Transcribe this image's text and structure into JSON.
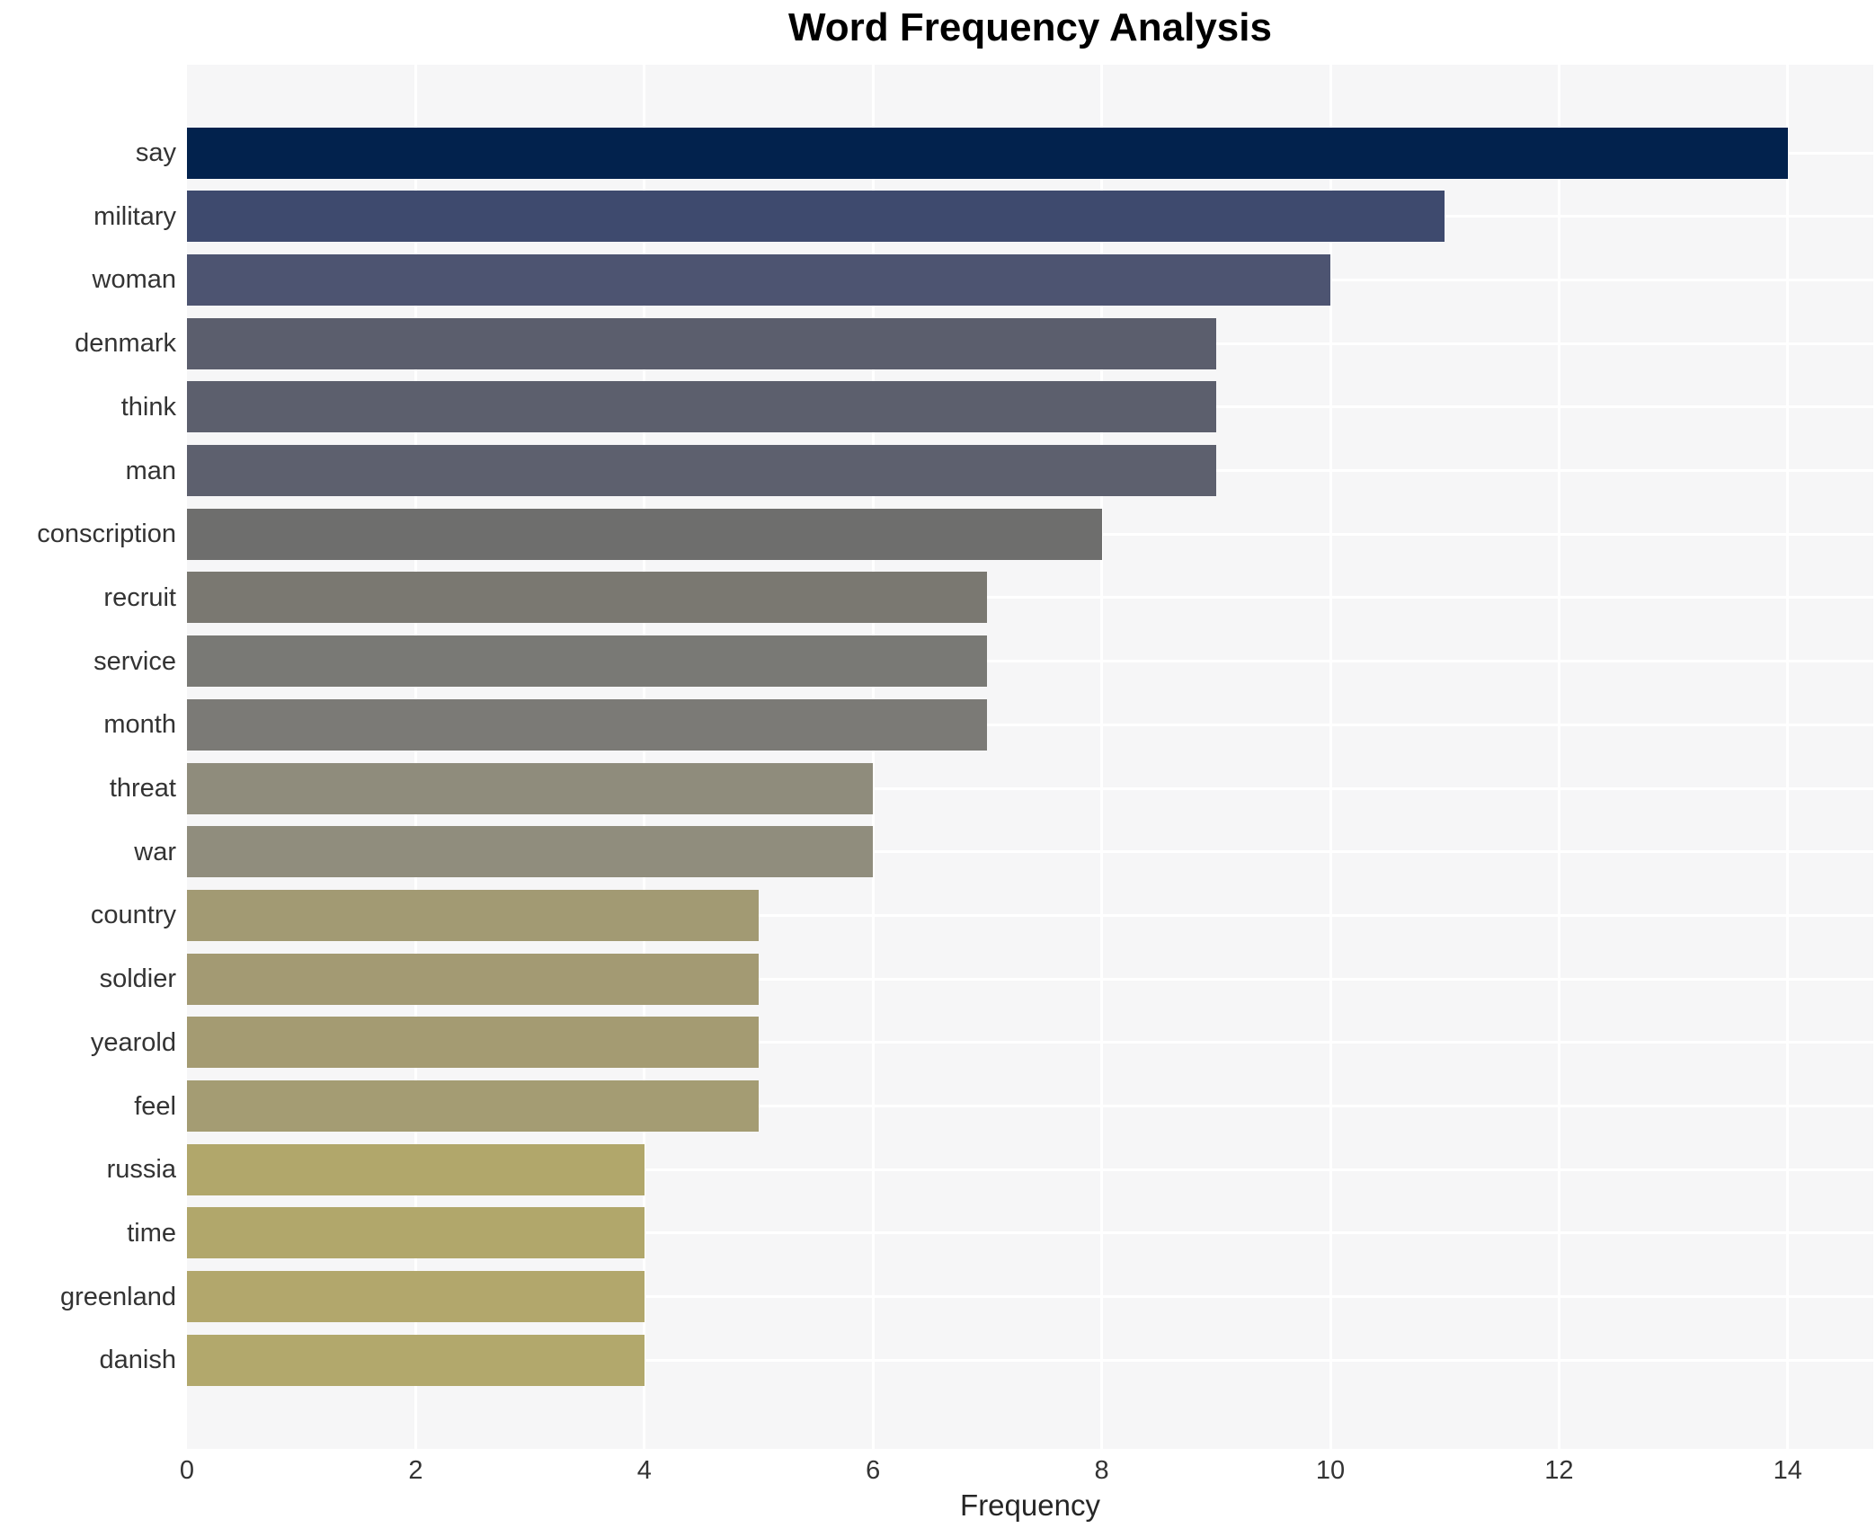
{
  "chart_data": {
    "type": "bar",
    "orientation": "horizontal",
    "title": "Word Frequency Analysis",
    "xlabel": "Frequency",
    "ylabel": "",
    "categories": [
      "say",
      "military",
      "woman",
      "denmark",
      "think",
      "man",
      "conscription",
      "recruit",
      "service",
      "month",
      "threat",
      "war",
      "country",
      "soldier",
      "yearold",
      "feel",
      "russia",
      "time",
      "greenland",
      "danish"
    ],
    "values": [
      14,
      11,
      10,
      9,
      9,
      9,
      8,
      7,
      7,
      7,
      6,
      6,
      5,
      5,
      5,
      5,
      4,
      4,
      4,
      4
    ],
    "bar_colors": [
      "#02224d",
      "#3e4a6e",
      "#4d5471",
      "#5b5e6d",
      "#5c5f6d",
      "#5d606e",
      "#6e6e6d",
      "#7a7871",
      "#797975",
      "#7b7a76",
      "#8f8c7c",
      "#908d7d",
      "#a29a73",
      "#a39a73",
      "#a49b72",
      "#a49c73",
      "#b1a76b",
      "#b1a76b",
      "#b2a76c",
      "#b2a86c"
    ],
    "xticks": [
      0,
      2,
      4,
      6,
      8,
      10,
      12,
      14
    ],
    "xlim": [
      0,
      14.75
    ],
    "grid": true,
    "legend": "none",
    "plot_bg_color": "#f6f6f7",
    "grid_color": "#ffffff",
    "text_color": "#333333"
  }
}
